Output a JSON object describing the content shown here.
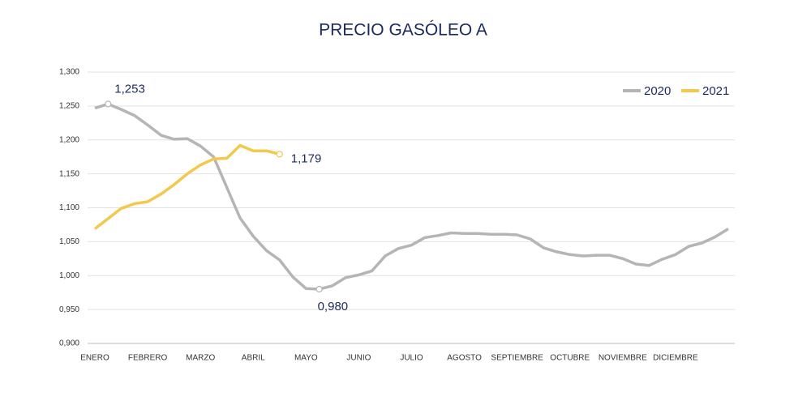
{
  "chart_data": {
    "type": "line",
    "title": "PRECIO GASÓLEO A",
    "categories": [
      "ENERO",
      null,
      null,
      null,
      "FEBRERO",
      null,
      null,
      null,
      "MARZO",
      null,
      null,
      null,
      "ABRIL",
      null,
      null,
      null,
      "MAYO",
      null,
      null,
      null,
      "JUNIO",
      null,
      null,
      null,
      "JULIO",
      null,
      null,
      null,
      "AGOSTO",
      null,
      null,
      null,
      "SEPTIEMBRE",
      null,
      null,
      null,
      "OCTUBRE",
      null,
      null,
      null,
      "NOVIEMBRE",
      null,
      null,
      null,
      "DICIEMBRE",
      null,
      null,
      null,
      null
    ],
    "series": [
      {
        "name": "2020",
        "color": "#b5b5b5",
        "values": [
          1.247,
          1.253,
          1.245,
          1.236,
          1.222,
          1.207,
          1.201,
          1.202,
          1.191,
          1.175,
          1.13,
          1.085,
          1.058,
          1.037,
          1.023,
          0.998,
          0.981,
          0.98,
          0.985,
          0.997,
          1.001,
          1.007,
          1.029,
          1.04,
          1.045,
          1.056,
          1.059,
          1.063,
          1.062,
          1.062,
          1.061,
          1.061,
          1.06,
          1.054,
          1.041,
          1.035,
          1.031,
          1.029,
          1.03,
          1.03,
          1.025,
          1.017,
          1.015,
          1.024,
          1.031,
          1.043,
          1.048,
          1.057,
          1.069
        ],
        "value_labels": [
          null,
          "1,253",
          null,
          null,
          null,
          null,
          null,
          null,
          null,
          null,
          null,
          null,
          null,
          null,
          null,
          null,
          null,
          "0,980",
          null,
          null,
          null,
          null,
          null,
          null,
          null,
          null,
          null,
          null,
          null,
          null,
          null,
          null,
          null,
          null,
          null,
          null,
          null,
          null,
          null,
          null,
          null,
          null,
          null,
          null,
          null,
          null,
          null,
          null,
          null
        ]
      },
      {
        "name": "2021",
        "color": "#f2c94c",
        "values": [
          1.069,
          1.084,
          1.099,
          1.106,
          1.109,
          1.12,
          1.134,
          1.15,
          1.163,
          1.172,
          1.173,
          1.192,
          1.184,
          1.184,
          1.179,
          null,
          null,
          null,
          null,
          null,
          null,
          null,
          null,
          null,
          null,
          null,
          null,
          null,
          null,
          null,
          null,
          null,
          null,
          null,
          null,
          null,
          null,
          null,
          null,
          null,
          null,
          null,
          null,
          null,
          null,
          null,
          null,
          null,
          null
        ],
        "value_labels": [
          null,
          null,
          null,
          null,
          null,
          null,
          null,
          null,
          null,
          null,
          null,
          null,
          null,
          null,
          "1,179",
          null,
          null,
          null,
          null,
          null,
          null,
          null,
          null,
          null,
          null,
          null,
          null,
          null,
          null,
          null,
          null,
          null,
          null,
          null,
          null,
          null,
          null,
          null,
          null,
          null,
          null,
          null,
          null,
          null,
          null,
          null,
          null,
          null,
          null
        ]
      }
    ],
    "ylim": [
      0.9,
      1.3
    ],
    "yticks": [
      {
        "value": 0.9,
        "label": "0,900"
      },
      {
        "value": 0.95,
        "label": "0,950"
      },
      {
        "value": 1.0,
        "label": "1,000"
      },
      {
        "value": 1.05,
        "label": "1,050"
      },
      {
        "value": 1.1,
        "label": "1,100"
      },
      {
        "value": 1.15,
        "label": "1,150"
      },
      {
        "value": 1.2,
        "label": "1,200"
      },
      {
        "value": 1.25,
        "label": "1,250"
      },
      {
        "value": 1.3,
        "label": "1,300"
      }
    ],
    "grid": true,
    "legend": "top-right"
  }
}
